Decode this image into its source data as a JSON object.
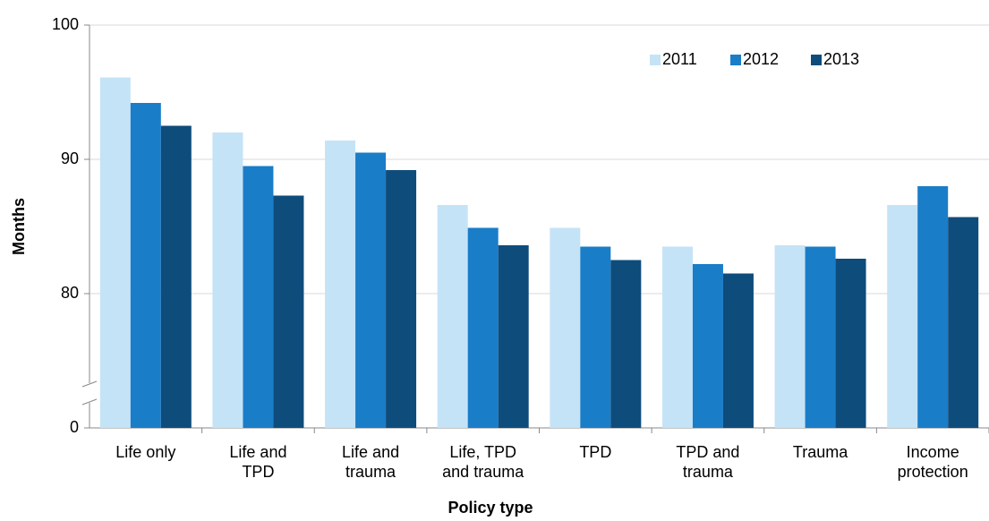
{
  "chart_data": {
    "type": "bar",
    "x_label": "Policy type",
    "y_label": "Months",
    "categories": [
      "Life only",
      "Life and\nTPD",
      "Life and\ntrauma",
      "Life, TPD\nand trauma",
      "TPD",
      "TPD and\ntrauma",
      "Trauma",
      "Income\nprotection"
    ],
    "series": [
      {
        "name": "2011",
        "color": "#c5e3f7",
        "values": [
          96.1,
          92.0,
          91.4,
          86.6,
          84.9,
          83.5,
          83.6,
          86.6
        ]
      },
      {
        "name": "2012",
        "color": "#1a7dc8",
        "values": [
          94.2,
          89.5,
          90.5,
          84.9,
          83.5,
          82.2,
          83.5,
          88.0
        ]
      },
      {
        "name": "2013",
        "color": "#0e4c7c",
        "values": [
          92.5,
          87.3,
          89.2,
          83.6,
          82.5,
          81.5,
          82.6,
          85.7
        ]
      }
    ],
    "ylim": [
      0,
      100
    ],
    "ybreak": [
      0,
      70
    ],
    "yticks": [
      0,
      80,
      90,
      100
    ],
    "grid": true,
    "legend": "top-right"
  }
}
